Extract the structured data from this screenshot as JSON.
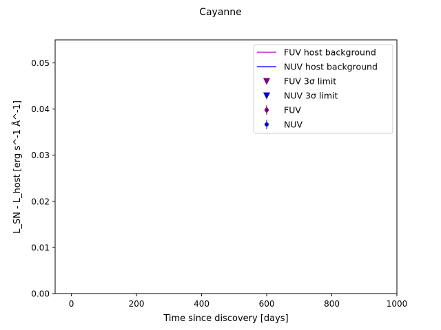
{
  "chart_data": {
    "type": "scatter",
    "title": "Cayanne",
    "xlabel": "Time since discovery [days]",
    "ylabel": "L_SN - L_host [erg s^-1 Å^-1]",
    "xlim": [
      -50,
      1000
    ],
    "ylim": [
      0,
      0.055
    ],
    "x_ticks": [
      0,
      200,
      400,
      600,
      800,
      1000
    ],
    "y_ticks": [
      0.0,
      0.01,
      0.02,
      0.03,
      0.04,
      0.05
    ],
    "y_tick_decimals": 2,
    "grid": false,
    "legend_position": "top-right",
    "legend": [
      {
        "label": "FUV host background",
        "kind": "line",
        "color": "#bf1fbf"
      },
      {
        "label": "NUV host background",
        "kind": "line",
        "color": "#1f1fff"
      },
      {
        "label": "FUV 3σ limit",
        "kind": "triangle-down",
        "color": "#800080"
      },
      {
        "label": "NUV 3σ limit",
        "kind": "triangle-down",
        "color": "#0000cd"
      },
      {
        "label": "FUV",
        "kind": "diamond-errorbar",
        "color": "#800080"
      },
      {
        "label": "NUV",
        "kind": "circle-errorbar",
        "color": "#0000cd"
      }
    ],
    "series": []
  }
}
